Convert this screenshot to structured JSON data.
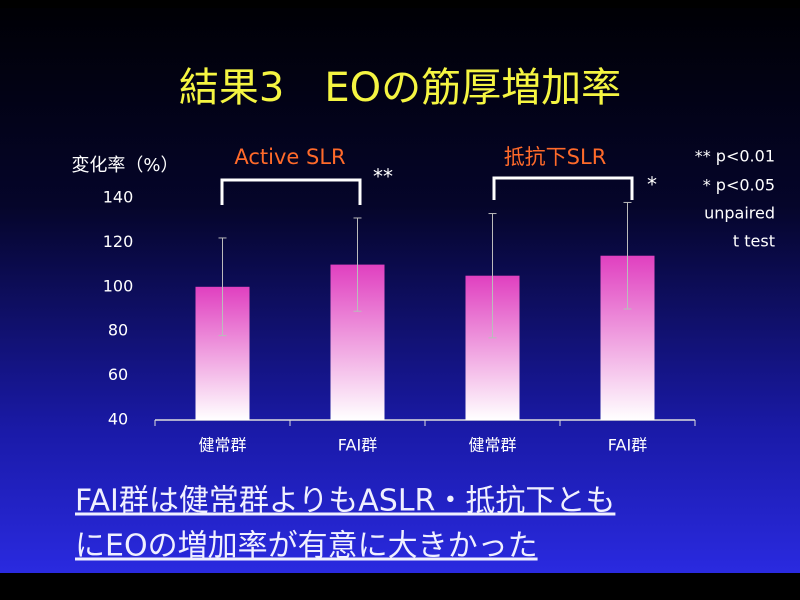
{
  "chart_data": {
    "type": "bar",
    "title": "結果3　EOの筋厚増加率",
    "y_label": "変化率（%）",
    "categories": [
      "健常群",
      "FAI群",
      "健常群",
      "FAI群"
    ],
    "values": [
      100,
      110,
      105,
      114
    ],
    "errors": [
      22,
      21,
      28,
      24
    ],
    "color": "#e040c0",
    "ylim": [
      40,
      140
    ],
    "yticks": [
      40,
      60,
      80,
      100,
      120,
      140
    ],
    "group_labels": [
      "Active SLR",
      "抵抗下SLR"
    ],
    "significance": [
      "**",
      "*"
    ],
    "note": [
      "** p<0.01",
      "* p<0.05",
      "unpaired",
      "t test"
    ],
    "conclusion": [
      "FAI群は健常群よりもASLR・抵抗下とも",
      "にEOの増加率が有意に大きかった"
    ]
  }
}
